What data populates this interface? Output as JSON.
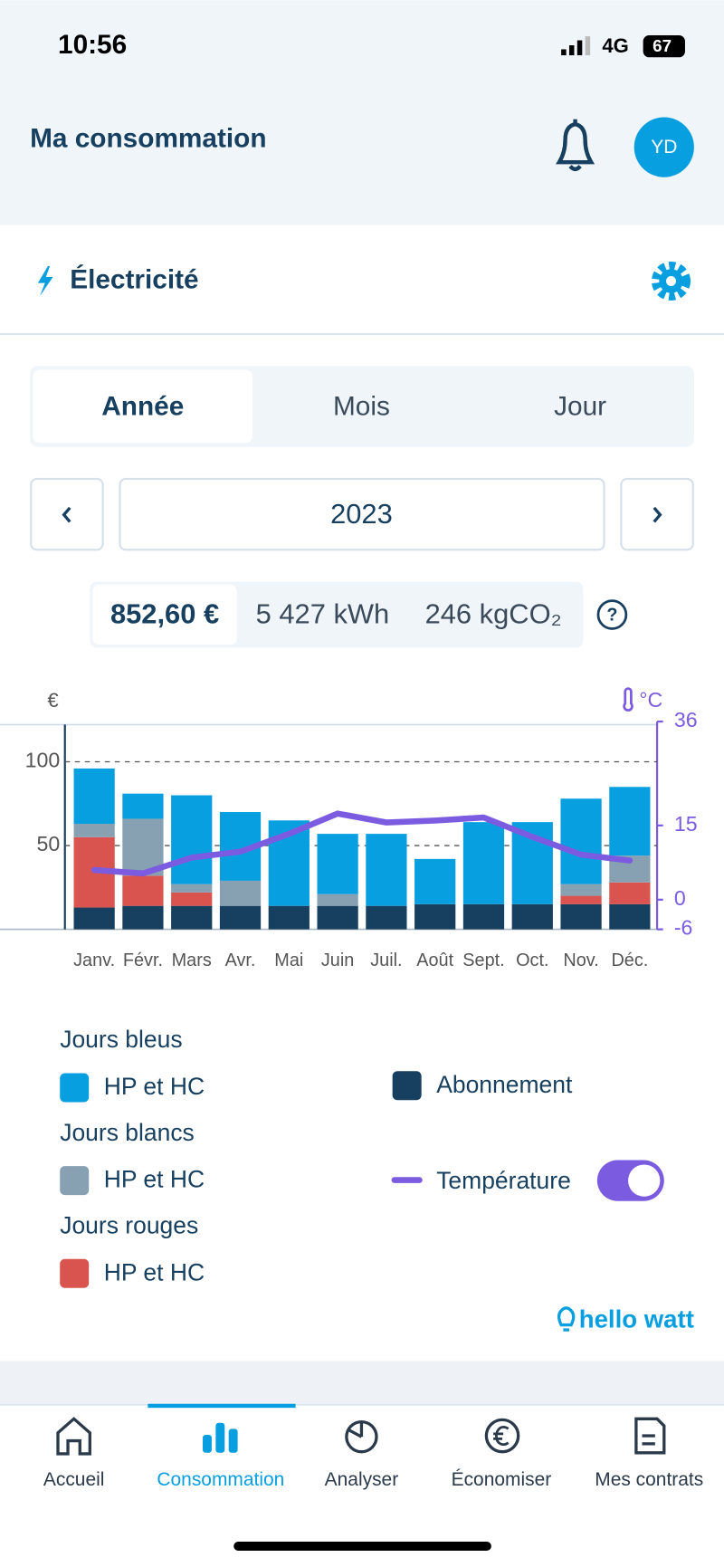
{
  "status_bar": {
    "time": "10:56",
    "network": "4G",
    "battery": "67"
  },
  "header": {
    "title": "Ma consommation",
    "avatar": "YD"
  },
  "section": {
    "title": "Électricité"
  },
  "tabs": [
    "Année",
    "Mois",
    "Jour"
  ],
  "period": {
    "value": "2023"
  },
  "summary": {
    "items": [
      "852,60 €",
      "5 427 kWh",
      "246 kgCO₂"
    ],
    "help": "?"
  },
  "chart_data": {
    "type": "bar",
    "stacked": true,
    "categories": [
      "Janv.",
      "Févr.",
      "Mars",
      "Avr.",
      "Mai",
      "Juin",
      "Juil.",
      "Août",
      "Sept.",
      "Oct.",
      "Nov.",
      "Déc."
    ],
    "series": [
      {
        "name": "Abonnement",
        "color": "#173f5f",
        "values": [
          13,
          14,
          14,
          14,
          14,
          14,
          14,
          15,
          15,
          15,
          15,
          15
        ]
      },
      {
        "name": "HP et HC",
        "group": "Jours rouges",
        "color": "#d9534f",
        "values": [
          42,
          18,
          8,
          0,
          0,
          0,
          0,
          0,
          0,
          0,
          5,
          13
        ]
      },
      {
        "name": "HP et HC",
        "group": "Jours blancs",
        "color": "#87a0b2",
        "values": [
          8,
          34,
          5,
          15,
          0,
          7,
          0,
          0,
          0,
          0,
          7,
          16
        ]
      },
      {
        "name": "HP et HC",
        "group": "Jours bleus",
        "color": "#089fe0",
        "values": [
          33,
          15,
          53,
          41,
          51,
          36,
          43,
          27,
          49,
          49,
          51,
          41
        ]
      },
      {
        "name": "Température",
        "type": "line",
        "axis": "y2",
        "color": "#7b5ce0",
        "values": [
          6,
          5.3,
          8.5,
          9.7,
          13.3,
          17.4,
          15.6,
          16,
          16.6,
          12.7,
          9.1,
          7.9
        ]
      }
    ],
    "y_label": "€",
    "y2_label": "°C",
    "ylim": [
      0,
      124
    ],
    "yticks": [
      50,
      100
    ],
    "y2lim": [
      -6,
      36
    ],
    "y2ticks": [
      -6,
      0,
      15,
      36
    ],
    "grid": true
  },
  "brand": "hello watt",
  "nav": [
    "Accueil",
    "Consommation",
    "Analyser",
    "Économiser",
    "Mes contrats"
  ]
}
